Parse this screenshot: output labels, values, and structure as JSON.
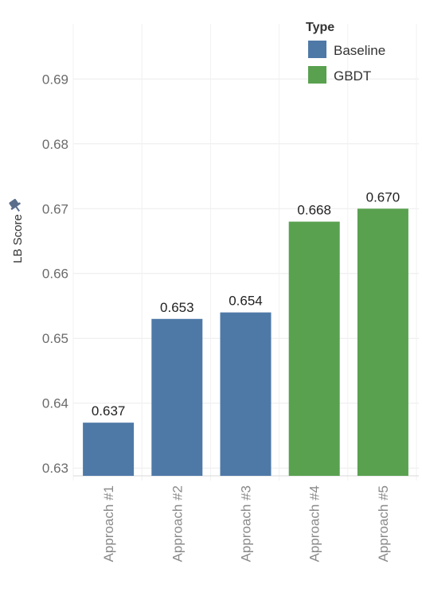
{
  "chart_data": {
    "type": "bar",
    "categories": [
      "Approach #1",
      "Approach #2",
      "Approach #3",
      "Approach #4",
      "Approach #5"
    ],
    "values": [
      0.637,
      0.653,
      0.654,
      0.668,
      0.67
    ],
    "value_labels": [
      "0.637",
      "0.653",
      "0.654",
      "0.668",
      "0.670"
    ],
    "series_type": [
      "Baseline",
      "Baseline",
      "Baseline",
      "GBDT",
      "GBDT"
    ],
    "ylabel": "LB Score",
    "yticks": [
      "0.63",
      "0.64",
      "0.65",
      "0.66",
      "0.67",
      "0.68",
      "0.69"
    ],
    "ylim": [
      0.6288,
      0.6985
    ],
    "grid": true,
    "legend": {
      "title": "Type",
      "placement": "top-right",
      "entries": [
        {
          "name": "Baseline",
          "color": "#4e79a7"
        },
        {
          "name": "GBDT",
          "color": "#59a14f"
        }
      ]
    }
  }
}
